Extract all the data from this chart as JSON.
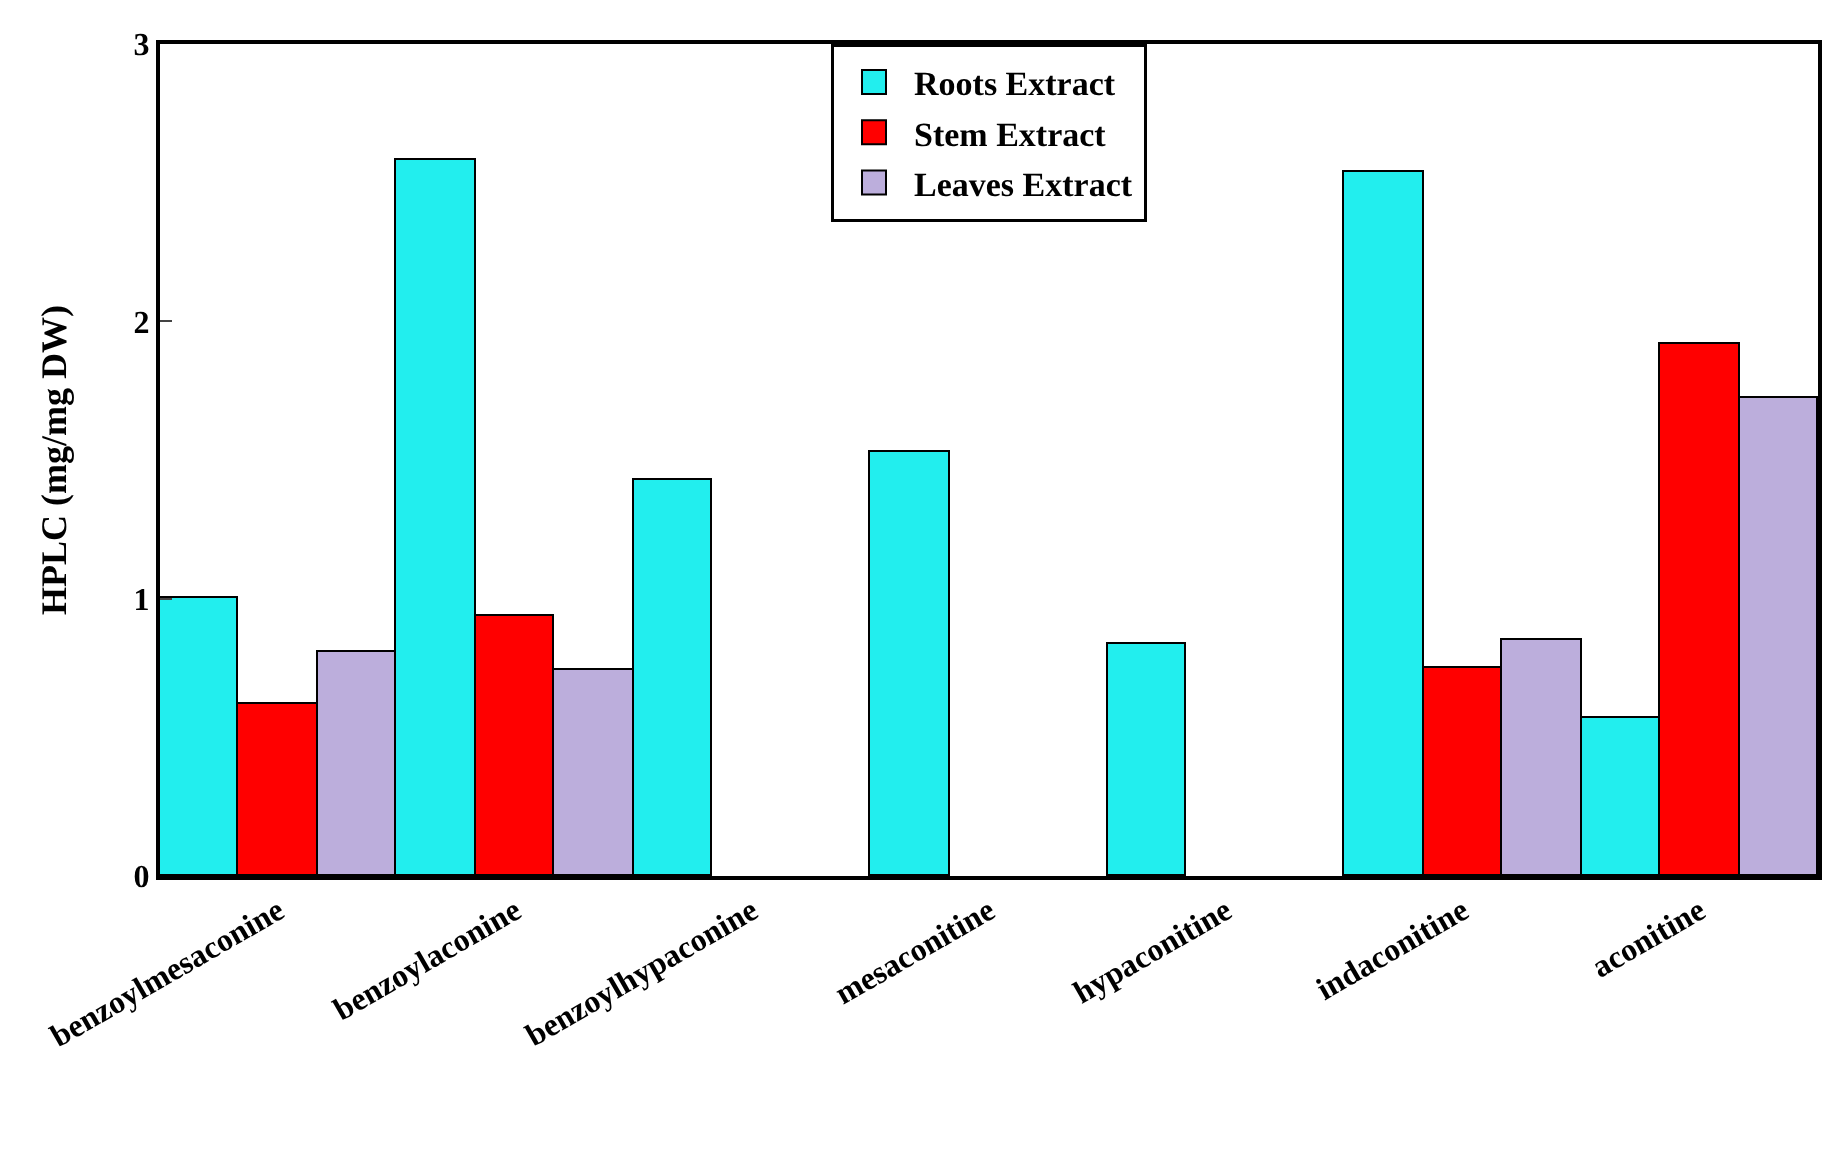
{
  "chart_data": {
    "type": "bar",
    "ylabel": "HPLC (mg/mg DW)",
    "categories": [
      "benzoylmesaconine",
      "benzoylaconine",
      "benzoylhypaconine",
      "mesaconitine",
      "hypaconitine",
      "indaconitine",
      "aconitine"
    ],
    "series": [
      {
        "name": "Roots Extract",
        "color": "#22eeee",
        "values": [
          1.0,
          2.58,
          1.43,
          1.53,
          0.84,
          2.54,
          0.57
        ]
      },
      {
        "name": "Stem Extract",
        "color": "#ff0000",
        "values": [
          0.62,
          0.94,
          null,
          null,
          null,
          0.75,
          1.92
        ]
      },
      {
        "name": "Leaves Extract",
        "color": "#bcaedc",
        "values": [
          0.81,
          0.74,
          null,
          null,
          null,
          0.85,
          1.72
        ]
      }
    ],
    "ylim": [
      0,
      3
    ],
    "yticks": [
      0,
      1,
      2,
      3
    ],
    "grid": false,
    "legend": "top"
  }
}
